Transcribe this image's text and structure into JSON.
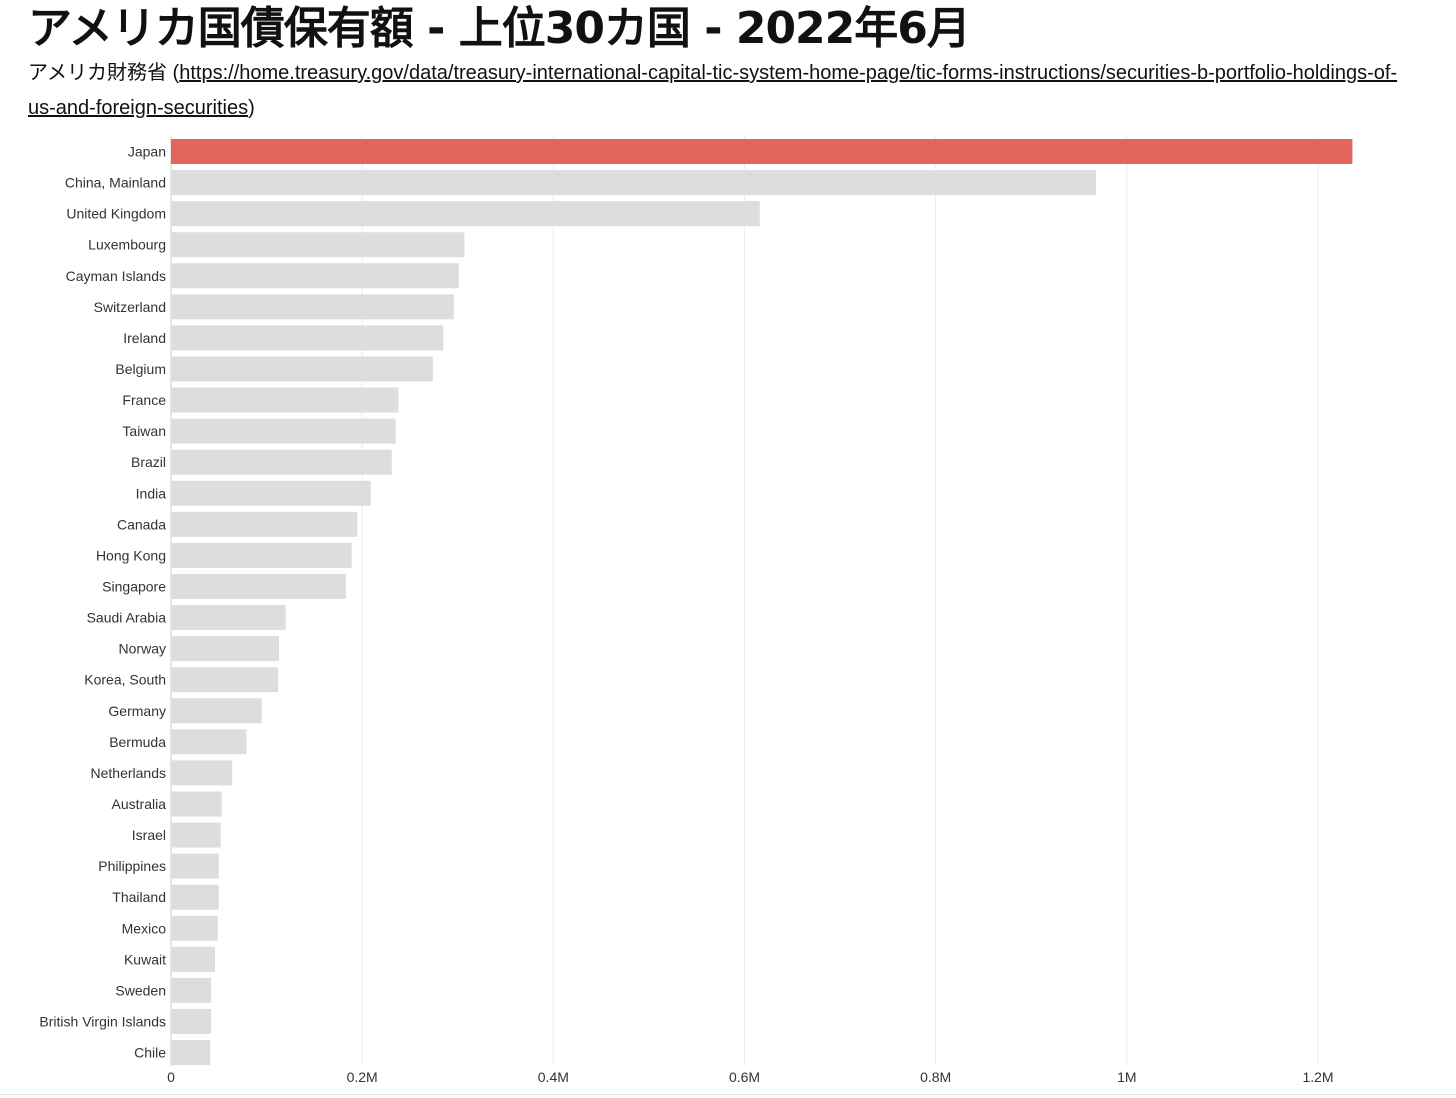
{
  "header": {
    "title": "アメリカ国債保有額 - 上位30カ国 - 2022年6月",
    "source_prefix": "アメリカ財務省 (",
    "source_link": "https://home.treasury.gov/data/treasury-international-capital-tic-system-home-page/tic-forms-instructions/securities-b-portfolio-holdings-of-us-and-foreign-securities",
    "source_suffix": ")"
  },
  "colors": {
    "highlight": "#e2665c",
    "bar": "#dcdddf",
    "grid": "#ececec"
  },
  "chart_data": {
    "type": "bar",
    "orientation": "horizontal",
    "categories": [
      "Japan",
      "China, Mainland",
      "United Kingdom",
      "Luxembourg",
      "Cayman Islands",
      "Switzerland",
      "Ireland",
      "Belgium",
      "France",
      "Taiwan",
      "Brazil",
      "India",
      "Canada",
      "Hong Kong",
      "Singapore",
      "Saudi Arabia",
      "Norway",
      "Korea, South",
      "Germany",
      "Bermuda",
      "Netherlands",
      "Australia",
      "Israel",
      "Philippines",
      "Thailand",
      "Mexico",
      "Kuwait",
      "Sweden",
      "British Virgin Islands",
      "Chile"
    ],
    "values": [
      1236000,
      967800,
      616000,
      307000,
      301000,
      296000,
      285000,
      274000,
      238000,
      235000,
      231000,
      209000,
      195000,
      189000,
      183000,
      120000,
      113000,
      112000,
      95000,
      79000,
      64000,
      53000,
      52000,
      50000,
      50000,
      49000,
      46000,
      42000,
      42000,
      41000
    ],
    "highlight_index": 0,
    "xlim": [
      0,
      1280000
    ],
    "xticks": [
      0,
      200000,
      400000,
      600000,
      800000,
      1000000,
      1200000
    ],
    "xtick_labels": [
      "0",
      "0.2M",
      "0.4M",
      "0.6M",
      "0.8M",
      "1M",
      "1.2M"
    ],
    "xlabel": "",
    "ylabel": "",
    "grid": true,
    "legend": "none"
  }
}
